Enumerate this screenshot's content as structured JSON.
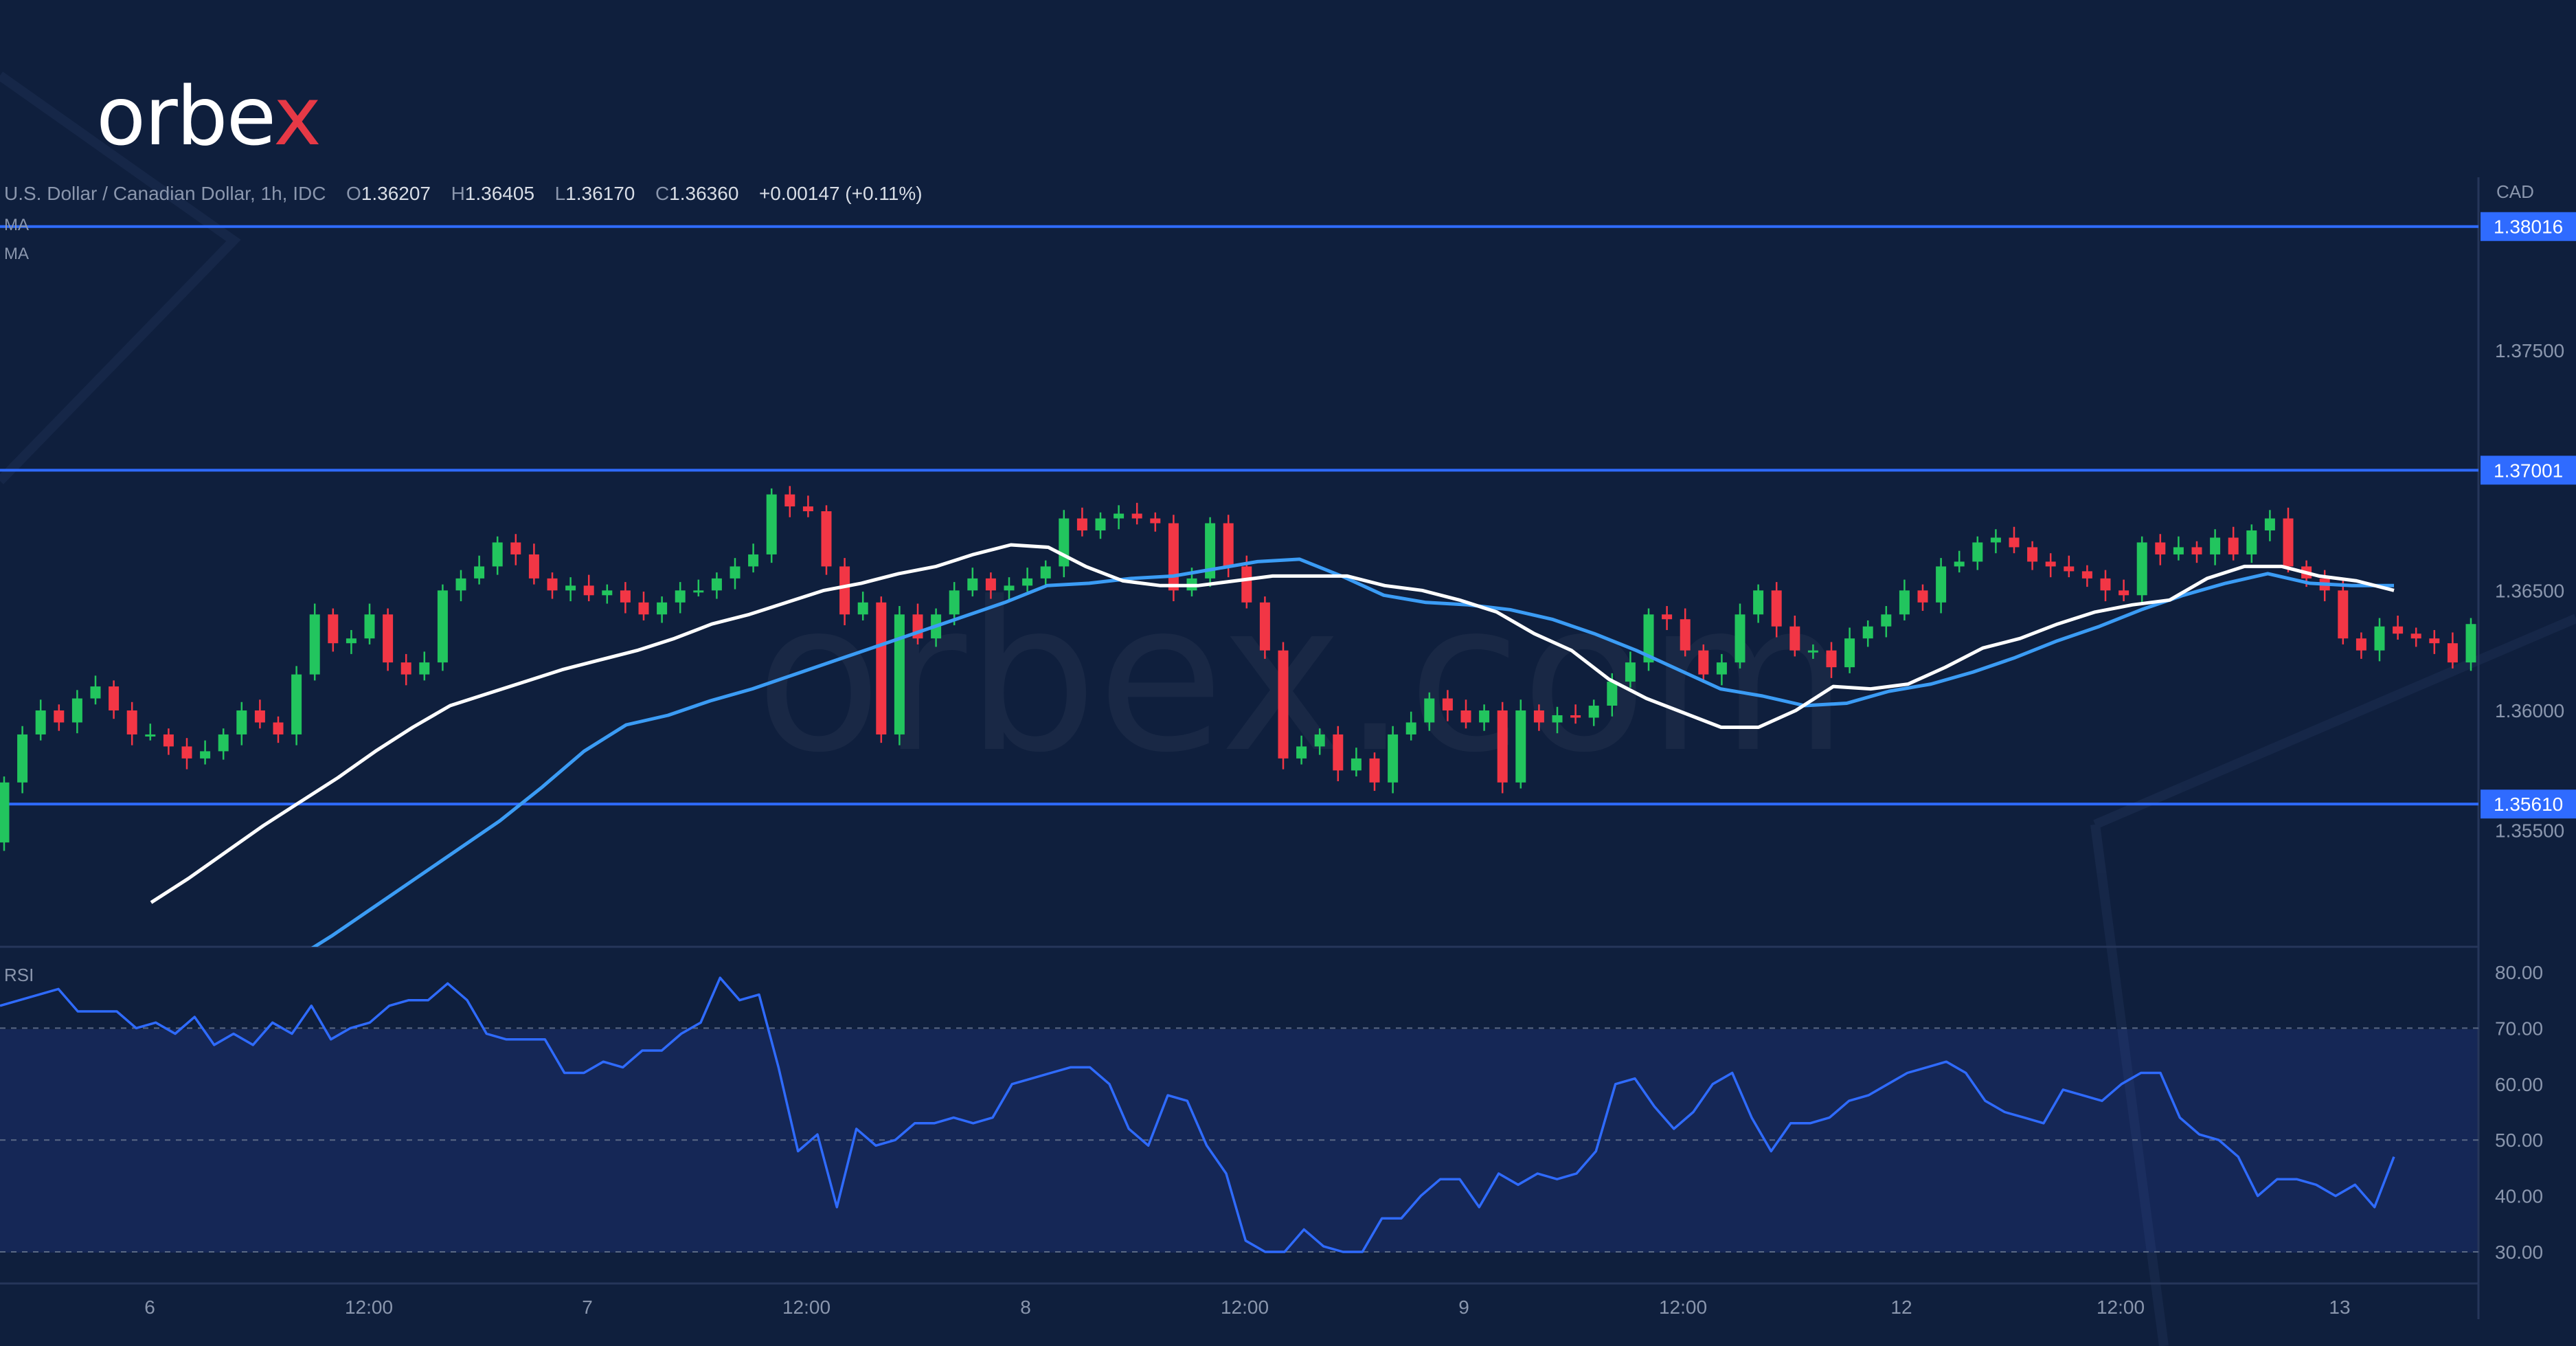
{
  "brand": {
    "logo_text": "orbe",
    "logo_x": "x",
    "colors": {
      "background": "#0f1f3d",
      "accent_red": "#e63946",
      "line_blue": "#2f6bff"
    }
  },
  "legend": {
    "symbol": "U.S. Dollar / Canadian Dollar, 1h, IDC",
    "o_label": "O",
    "o_value": "1.36207",
    "h_label": "H",
    "h_value": "1.36405",
    "l_label": "L",
    "l_value": "1.36170",
    "c_label": "C",
    "c_value": "1.36360",
    "change": "+0.00147 (+0.11%)",
    "ma1": "MA",
    "ma2": "MA"
  },
  "currency": "CAD",
  "rsi_label": "RSI",
  "chart_data": {
    "type": "candlestick",
    "price_axis": {
      "ticks": [
        "1.37500",
        "1.36500",
        "1.36000",
        "1.35500"
      ],
      "range": [
        1.3515,
        1.384
      ]
    },
    "horizontal_lines": [
      {
        "value": 1.38016,
        "label": "1.38016"
      },
      {
        "value": 1.37001,
        "label": "1.37001"
      },
      {
        "value": 1.3561,
        "label": "1.35610"
      }
    ],
    "x_axis_labels": [
      "6",
      "12:00",
      "7",
      "12:00",
      "8",
      "12:00",
      "9",
      "12:00",
      "12",
      "12:00",
      "13"
    ],
    "closes": [
      1.357,
      1.359,
      1.36,
      1.3595,
      1.3605,
      1.361,
      1.36,
      1.359,
      1.359,
      1.3585,
      1.358,
      1.3583,
      1.359,
      1.36,
      1.3595,
      1.359,
      1.3615,
      1.364,
      1.3628,
      1.363,
      1.364,
      1.362,
      1.3615,
      1.362,
      1.365,
      1.3655,
      1.366,
      1.367,
      1.3665,
      1.3655,
      1.365,
      1.3652,
      1.3648,
      1.365,
      1.3645,
      1.364,
      1.3645,
      1.365,
      1.365,
      1.3655,
      1.366,
      1.3665,
      1.369,
      1.3685,
      1.3683,
      1.366,
      1.364,
      1.3645,
      1.359,
      1.364,
      1.363,
      1.364,
      1.365,
      1.3655,
      1.365,
      1.3652,
      1.3655,
      1.366,
      1.368,
      1.3675,
      1.368,
      1.3682,
      1.368,
      1.3678,
      1.365,
      1.3655,
      1.3678,
      1.366,
      1.3645,
      1.3625,
      1.358,
      1.3585,
      1.359,
      1.3575,
      1.358,
      1.357,
      1.359,
      1.3595,
      1.3605,
      1.36,
      1.3595,
      1.36,
      1.357,
      1.36,
      1.3595,
      1.3598,
      1.3597,
      1.3602,
      1.3612,
      1.362,
      1.364,
      1.3638,
      1.3625,
      1.3615,
      1.362,
      1.364,
      1.365,
      1.3635,
      1.3625,
      1.3625,
      1.3618,
      1.363,
      1.3635,
      1.364,
      1.365,
      1.3645,
      1.366,
      1.3662,
      1.367,
      1.3672,
      1.3668,
      1.3662,
      1.366,
      1.3658,
      1.3655,
      1.365,
      1.3648,
      1.367,
      1.3665,
      1.3668,
      1.3665,
      1.3672,
      1.3665,
      1.3675,
      1.368,
      1.366,
      1.3655,
      1.365,
      1.363,
      1.3625,
      1.3635,
      1.3632,
      1.363,
      1.3628,
      1.362,
      1.3636
    ],
    "ma_fast": [
      1.352,
      1.353,
      1.3541,
      1.3552,
      1.3562,
      1.3572,
      1.3583,
      1.3593,
      1.3602,
      1.3607,
      1.3612,
      1.3617,
      1.3621,
      1.3625,
      1.363,
      1.3636,
      1.364,
      1.3645,
      1.365,
      1.3653,
      1.3657,
      1.366,
      1.3665,
      1.3669,
      1.3668,
      1.366,
      1.3654,
      1.3652,
      1.3652,
      1.3654,
      1.3656,
      1.3656,
      1.3656,
      1.3652,
      1.365,
      1.3646,
      1.3641,
      1.3632,
      1.3625,
      1.3613,
      1.3605,
      1.3599,
      1.3593,
      1.3593,
      1.36,
      1.361,
      1.3609,
      1.3611,
      1.3618,
      1.3626,
      1.363,
      1.3636,
      1.3641,
      1.3644,
      1.3646,
      1.3655,
      1.366,
      1.366,
      1.3656,
      1.3654,
      1.365
    ],
    "ma_slow": [
      1.3485,
      1.3495,
      1.3506,
      1.3518,
      1.353,
      1.3542,
      1.3554,
      1.3568,
      1.3583,
      1.3594,
      1.3598,
      1.3604,
      1.3609,
      1.3615,
      1.3621,
      1.3627,
      1.3633,
      1.3639,
      1.3645,
      1.3652,
      1.3653,
      1.3655,
      1.3656,
      1.3659,
      1.3662,
      1.3663,
      1.3656,
      1.3648,
      1.3645,
      1.3644,
      1.3642,
      1.3638,
      1.3632,
      1.3625,
      1.3617,
      1.3609,
      1.3606,
      1.3602,
      1.3603,
      1.3608,
      1.3611,
      1.3616,
      1.3622,
      1.3629,
      1.3635,
      1.3642,
      1.3648,
      1.3653,
      1.3657,
      1.3653,
      1.3652,
      1.3652
    ],
    "rsi_axis": {
      "ticks": [
        "80.00",
        "70.00",
        "60.00",
        "50.00",
        "40.00",
        "30.00"
      ],
      "range": [
        27,
        81
      ],
      "bands": [
        30,
        70
      ],
      "midline": 50
    },
    "rsi": [
      74,
      75,
      76,
      77,
      73,
      73,
      73,
      70,
      71,
      69,
      72,
      67,
      69,
      67,
      71,
      69,
      74,
      68,
      70,
      71,
      74,
      75,
      75,
      78,
      75,
      69,
      68,
      68,
      68,
      62,
      62,
      64,
      63,
      66,
      66,
      69,
      71,
      79,
      75,
      76,
      63,
      48,
      51,
      38,
      52,
      49,
      50,
      53,
      53,
      54,
      53,
      54,
      60,
      61,
      62,
      63,
      63,
      60,
      52,
      49,
      58,
      57,
      49,
      44,
      32,
      30,
      30,
      34,
      31,
      30,
      30,
      36,
      36,
      40,
      43,
      43,
      38,
      44,
      42,
      44,
      43,
      44,
      48,
      60,
      61,
      56,
      52,
      55,
      60,
      62,
      54,
      48,
      53,
      53,
      54,
      57,
      58,
      60,
      62,
      63,
      64,
      62,
      57,
      55,
      54,
      53,
      59,
      58,
      57,
      60,
      62,
      62,
      54,
      51,
      50,
      47,
      40,
      43,
      43,
      42,
      40,
      42,
      38,
      47
    ]
  }
}
